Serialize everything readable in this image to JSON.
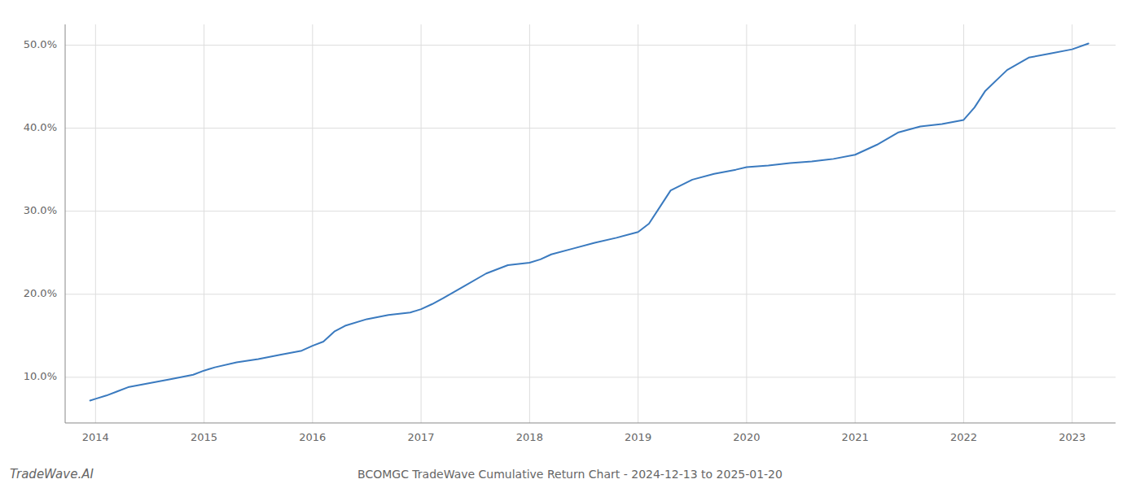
{
  "chart_data": {
    "type": "line",
    "title": "BCOMGC TradeWave Cumulative Return Chart - 2024-12-13 to 2025-01-20",
    "annotations": [
      "TradeWave.AI"
    ],
    "color": "#3a7abf",
    "grid": true,
    "x": [
      2013.95,
      2014.0,
      2014.1,
      2014.2,
      2014.3,
      2014.5,
      2014.7,
      2014.9,
      2015.0,
      2015.1,
      2015.3,
      2015.5,
      2015.7,
      2015.9,
      2016.0,
      2016.1,
      2016.2,
      2016.3,
      2016.5,
      2016.7,
      2016.9,
      2017.0,
      2017.1,
      2017.2,
      2017.4,
      2017.6,
      2017.8,
      2018.0,
      2018.1,
      2018.2,
      2018.4,
      2018.6,
      2018.8,
      2019.0,
      2019.1,
      2019.2,
      2019.3,
      2019.5,
      2019.7,
      2019.9,
      2020.0,
      2020.2,
      2020.4,
      2020.6,
      2020.8,
      2021.0,
      2021.2,
      2021.4,
      2021.6,
      2021.8,
      2022.0,
      2022.1,
      2022.2,
      2022.4,
      2022.6,
      2022.8,
      2023.0,
      2023.15
    ],
    "values": [
      7.2,
      7.4,
      7.8,
      8.3,
      8.8,
      9.3,
      9.8,
      10.3,
      10.8,
      11.2,
      11.8,
      12.2,
      12.7,
      13.2,
      13.8,
      14.3,
      15.5,
      16.2,
      17.0,
      17.5,
      17.8,
      18.2,
      18.8,
      19.5,
      21.0,
      22.5,
      23.5,
      23.8,
      24.2,
      24.8,
      25.5,
      26.2,
      26.8,
      27.5,
      28.5,
      30.5,
      32.5,
      33.8,
      34.5,
      35.0,
      35.3,
      35.5,
      35.8,
      36.0,
      36.3,
      36.8,
      38.0,
      39.5,
      40.2,
      40.5,
      41.0,
      42.5,
      44.5,
      47.0,
      48.5,
      49.0,
      49.5,
      50.2
    ],
    "xlim": [
      2013.72,
      2023.4
    ],
    "xticks": [
      2014,
      2015,
      2016,
      2017,
      2018,
      2019,
      2020,
      2021,
      2022,
      2023
    ],
    "ylim": [
      4.5,
      52.5
    ],
    "yticks": [
      {
        "value": 10,
        "label": "10.0%"
      },
      {
        "value": 20,
        "label": "20.0%"
      },
      {
        "value": 30,
        "label": "30.0%"
      },
      {
        "value": 40,
        "label": "40.0%"
      },
      {
        "value": 50,
        "label": "50.0%"
      }
    ]
  }
}
